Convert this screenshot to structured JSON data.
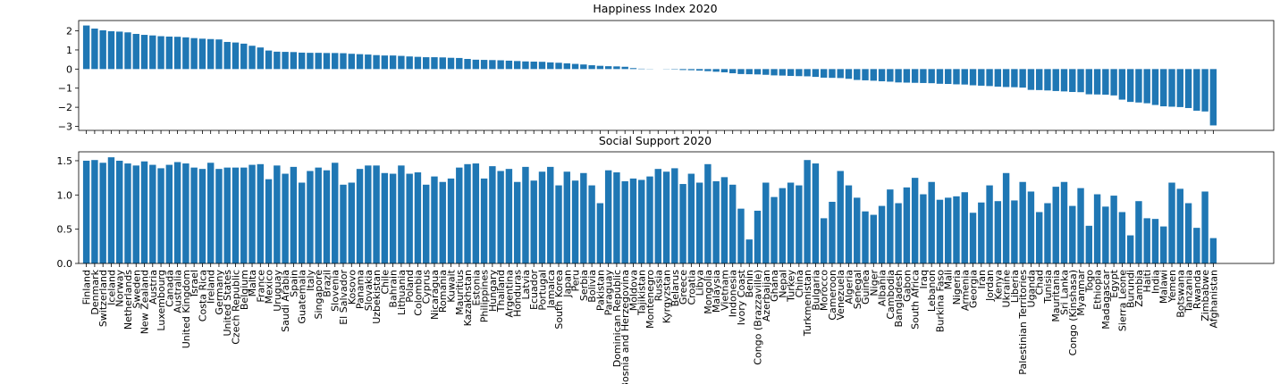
{
  "chart_data": [
    {
      "type": "bar",
      "title": "Happiness Index 2020",
      "color": "#1f77b4",
      "values": [
        2.28,
        2.12,
        2.03,
        1.98,
        1.96,
        1.92,
        1.84,
        1.79,
        1.76,
        1.72,
        1.7,
        1.69,
        1.66,
        1.62,
        1.59,
        1.57,
        1.55,
        1.42,
        1.39,
        1.33,
        1.22,
        1.13,
        0.97,
        0.91,
        0.9,
        0.89,
        0.86,
        0.85,
        0.85,
        0.84,
        0.84,
        0.83,
        0.8,
        0.78,
        0.76,
        0.73,
        0.71,
        0.71,
        0.69,
        0.66,
        0.64,
        0.62,
        0.62,
        0.61,
        0.59,
        0.58,
        0.53,
        0.49,
        0.48,
        0.47,
        0.46,
        0.44,
        0.42,
        0.4,
        0.39,
        0.38,
        0.35,
        0.33,
        0.3,
        0.27,
        0.24,
        0.2,
        0.17,
        0.15,
        0.14,
        0.12,
        0.05,
        0.02,
        0.01,
        0.0,
        -0.01,
        -0.02,
        -0.05,
        -0.06,
        -0.08,
        -0.11,
        -0.14,
        -0.17,
        -0.22,
        -0.26,
        -0.27,
        -0.28,
        -0.3,
        -0.33,
        -0.34,
        -0.36,
        -0.37,
        -0.38,
        -0.41,
        -0.45,
        -0.46,
        -0.47,
        -0.51,
        -0.57,
        -0.59,
        -0.61,
        -0.64,
        -0.66,
        -0.7,
        -0.71,
        -0.72,
        -0.73,
        -0.74,
        -0.77,
        -0.78,
        -0.8,
        -0.81,
        -0.85,
        -0.87,
        -0.89,
        -0.92,
        -0.94,
        -0.95,
        -0.97,
        -1.09,
        -1.1,
        -1.12,
        -1.15,
        -1.17,
        -1.2,
        -1.21,
        -1.32,
        -1.33,
        -1.34,
        -1.38,
        -1.6,
        -1.72,
        -1.75,
        -1.79,
        -1.88,
        -1.95,
        -1.97,
        -1.99,
        -2.04,
        -2.18,
        -2.22,
        -2.95
      ],
      "ylim": [
        -3.21,
        2.54
      ],
      "yticks": [
        {
          "value": -3,
          "label": "−3"
        },
        {
          "value": -2,
          "label": "−2"
        },
        {
          "value": -1,
          "label": "−1"
        },
        0,
        1,
        2
      ]
    },
    {
      "type": "bar",
      "title": "Social Support 2020",
      "color": "#1f77b4",
      "categories": [
        "Finland",
        "Denmark",
        "Switzerland",
        "Iceland",
        "Norway",
        "Netherlands",
        "Sweden",
        "New Zealand",
        "Austria",
        "Luxembourg",
        "Canada",
        "Australia",
        "United Kingdom",
        "Israel",
        "Costa Rica",
        "Ireland",
        "Germany",
        "United States",
        "Czech Republic",
        "Belgium",
        "Malta",
        "France",
        "Mexico",
        "Uruguay",
        "Saudi Arabia",
        "Spain",
        "Guatemala",
        "Italy",
        "Singapore",
        "Brazil",
        "Slovenia",
        "El Salvador",
        "Kosovo",
        "Panama",
        "Slovakia",
        "Uzbekistan",
        "Chile",
        "Bahrain",
        "Lithuania",
        "Poland",
        "Colombia",
        "Cyprus",
        "Nicaragua",
        "Romania",
        "Kuwait",
        "Mauritius",
        "Kazakhstan",
        "Estonia",
        "Philippines",
        "Hungary",
        "Thailand",
        "Argentina",
        "Honduras",
        "Latvia",
        "Ecuador",
        "Portugal",
        "Jamaica",
        "South Korea",
        "Japan",
        "Peru",
        "Serbia",
        "Bolivia",
        "Pakistan",
        "Paraguay",
        "Dominican Republic",
        "Bosnia and Herzegovina",
        "Moldova",
        "Tajikistan",
        "Montenegro",
        "Russia",
        "Kyrgyzstan",
        "Belarus",
        "Greece",
        "Croatia",
        "Libya",
        "Mongolia",
        "Malaysia",
        "Vietnam",
        "Indonesia",
        "Ivory Coast",
        "Benin",
        "Congo (Brazzaville)",
        "Azerbaijan",
        "Ghana",
        "Nepal",
        "Turkey",
        "China",
        "Turkmenistan",
        "Bulgaria",
        "Morocco",
        "Cameroon",
        "Venezuela",
        "Algeria",
        "Senegal",
        "Guinea",
        "Niger",
        "Albania",
        "Cambodia",
        "Bangladesh",
        "Gabon",
        "South Africa",
        "Iraq",
        "Lebanon",
        "Burkina Faso",
        "Mali",
        "Nigeria",
        "Armenia",
        "Georgia",
        "Iran",
        "Jordan",
        "Kenya",
        "Ukraine",
        "Liberia",
        "Palestinian Territories",
        "Uganda",
        "Chad",
        "Tunisia",
        "Mauritania",
        "Sri Lanka",
        "Congo (Kinshasa)",
        "Myanmar",
        "Togo",
        "Ethiopia",
        "Madagascar",
        "Egypt",
        "Sierra Leone",
        "Burundi",
        "Zambia",
        "Haiti",
        "India",
        "Malawi",
        "Yemen",
        "Botswana",
        "Tanzania",
        "Rwanda",
        "Zimbabwe",
        "Afghanistan"
      ],
      "values": [
        1.5,
        1.51,
        1.47,
        1.55,
        1.5,
        1.46,
        1.43,
        1.49,
        1.44,
        1.39,
        1.44,
        1.48,
        1.46,
        1.4,
        1.38,
        1.47,
        1.38,
        1.4,
        1.4,
        1.4,
        1.44,
        1.45,
        1.23,
        1.43,
        1.31,
        1.41,
        1.18,
        1.35,
        1.4,
        1.36,
        1.47,
        1.15,
        1.18,
        1.38,
        1.43,
        1.43,
        1.32,
        1.31,
        1.43,
        1.31,
        1.33,
        1.15,
        1.27,
        1.19,
        1.24,
        1.4,
        1.45,
        1.46,
        1.24,
        1.42,
        1.35,
        1.38,
        1.19,
        1.41,
        1.21,
        1.34,
        1.41,
        1.14,
        1.34,
        1.21,
        1.32,
        1.14,
        0.88,
        1.36,
        1.33,
        1.2,
        1.24,
        1.22,
        1.27,
        1.38,
        1.34,
        1.39,
        1.16,
        1.31,
        1.18,
        1.45,
        1.2,
        1.26,
        1.15,
        0.8,
        0.35,
        0.77,
        1.18,
        0.97,
        1.1,
        1.18,
        1.14,
        1.51,
        1.46,
        0.66,
        0.9,
        1.35,
        1.14,
        0.96,
        0.76,
        0.71,
        0.84,
        1.08,
        0.88,
        1.11,
        1.25,
        1.01,
        1.19,
        0.93,
        0.96,
        0.98,
        1.04,
        0.74,
        0.89,
        1.14,
        0.91,
        1.32,
        0.92,
        1.19,
        1.05,
        0.75,
        0.88,
        1.12,
        1.19,
        0.84,
        1.1,
        0.55,
        1.01,
        0.83,
        0.99,
        0.75,
        0.41,
        0.91,
        0.66,
        0.65,
        0.54,
        1.18,
        1.09,
        0.88,
        0.52,
        1.05,
        0.37
      ],
      "ylim": [
        0,
        1.63
      ],
      "yticks": [
        {
          "value": 0,
          "label": "0.0"
        },
        0.5,
        {
          "value": 1,
          "label": "1.0"
        },
        1.5
      ]
    }
  ]
}
